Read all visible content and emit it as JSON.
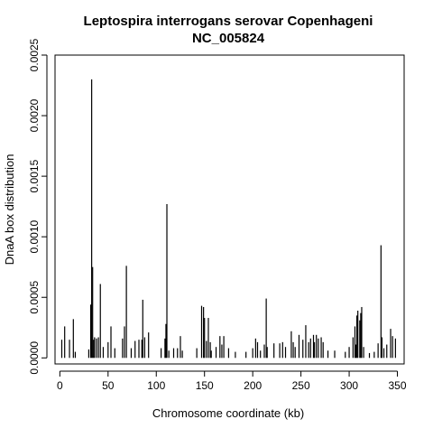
{
  "chart_data": {
    "type": "bar",
    "title": "Leptospira interrogans serovar Copenhageni",
    "subtitle": "NC_005824",
    "xlabel": "Chromosome coordinate (kb)",
    "ylabel": "DnaA box distribution",
    "xlim": [
      -5,
      357
    ],
    "ylim": [
      -5e-05,
      0.0025
    ],
    "x_ticks": [
      0,
      50,
      100,
      150,
      200,
      250,
      300,
      350
    ],
    "x_tick_labels": [
      "0",
      "50",
      "100",
      "150",
      "200",
      "250",
      "300",
      "350"
    ],
    "y_ticks": [
      0,
      0.0005,
      0.001,
      0.0015,
      0.002,
      0.0025
    ],
    "y_tick_labels": [
      "0.0000",
      "0.0005",
      "0.0010",
      "0.0015",
      "0.0020",
      "0.0025"
    ],
    "grid": false,
    "bar_color": "#000000",
    "series": [
      {
        "x": [
          2,
          5,
          10,
          14,
          16,
          30,
          32,
          33,
          34,
          35,
          36,
          38,
          40,
          42,
          45,
          50,
          53,
          57,
          65,
          67,
          69,
          74,
          78,
          82,
          85,
          86,
          88,
          92,
          105,
          109,
          110,
          111,
          113,
          118,
          122,
          125,
          127,
          142,
          147,
          149,
          150,
          152,
          154,
          156,
          157,
          162,
          166,
          168,
          170,
          175,
          182,
          193,
          200,
          203,
          205,
          208,
          212,
          214,
          215,
          222,
          228,
          231,
          234,
          240,
          242,
          244,
          248,
          252,
          255,
          258,
          260,
          263,
          264,
          266,
          268,
          271,
          273,
          278,
          285,
          296,
          300,
          304,
          306,
          307,
          308,
          309,
          311,
          312,
          313,
          315,
          321,
          326,
          330,
          333,
          334,
          336,
          339,
          343,
          345,
          348
        ],
        "values": [
          0.00015,
          0.00026,
          0.00015,
          0.00032,
          5e-05,
          7e-05,
          0.00044,
          0.0023,
          0.00075,
          0.00015,
          0.00017,
          0.00016,
          0.00017,
          0.00061,
          9e-05,
          0.00013,
          0.00026,
          8e-05,
          0.00016,
          0.00026,
          0.00076,
          8e-05,
          0.00014,
          0.00015,
          0.00015,
          0.00048,
          0.00017,
          0.00021,
          8e-05,
          0.00016,
          0.00028,
          0.00127,
          6e-05,
          8e-05,
          8e-05,
          0.00018,
          6e-05,
          8e-05,
          0.00043,
          0.00042,
          0.00033,
          0.00014,
          0.00033,
          0.00013,
          6e-05,
          9e-05,
          0.00018,
          0.00011,
          0.00018,
          8e-05,
          5e-05,
          5e-05,
          8e-05,
          0.00016,
          0.00013,
          6e-05,
          0.00011,
          0.00049,
          9e-05,
          0.00012,
          0.00012,
          0.00013,
          9e-05,
          0.00022,
          0.00013,
          9e-05,
          0.00019,
          0.00015,
          0.00027,
          0.00013,
          0.00016,
          0.00019,
          0.00013,
          0.00019,
          0.00016,
          0.00017,
          0.00013,
          6e-05,
          6e-05,
          5e-05,
          9e-05,
          0.00017,
          0.00026,
          0.00011,
          0.00035,
          0.00039,
          0.00031,
          0.00037,
          0.00042,
          9e-05,
          4e-05,
          5e-05,
          0.00012,
          0.00093,
          0.00017,
          8e-05,
          0.00011,
          0.00024,
          0.00018,
          0.00016
        ]
      }
    ]
  }
}
